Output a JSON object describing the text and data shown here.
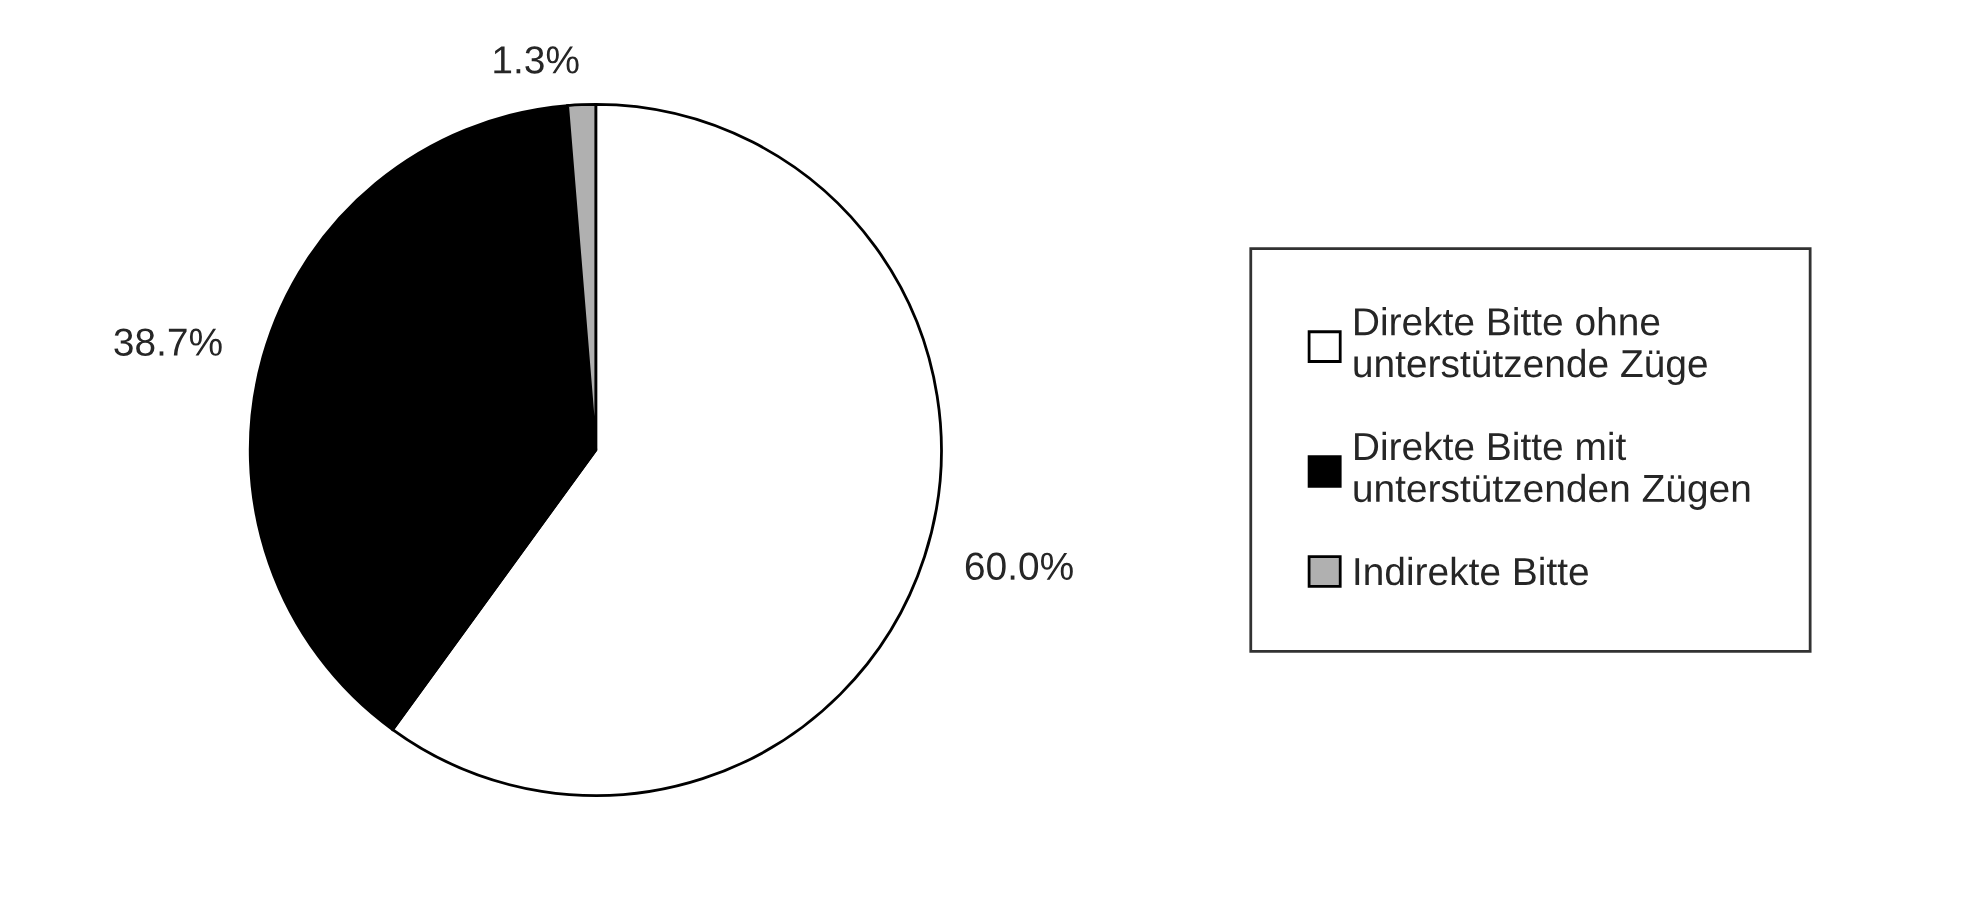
{
  "chart_data": {
    "type": "pie",
    "categories": [
      "Direkte Bitte ohne\nunterstützende Züge",
      "Direkte Bitte mit\nunterstützenden Zügen",
      "Indirekte Bitte"
    ],
    "values": [
      60.0,
      38.7,
      1.3
    ],
    "value_labels": [
      "60.0%",
      "38.7%",
      "1.3%"
    ],
    "colors": [
      "#ffffff",
      "#000000",
      "#b0b0b0"
    ],
    "legend": "right"
  }
}
